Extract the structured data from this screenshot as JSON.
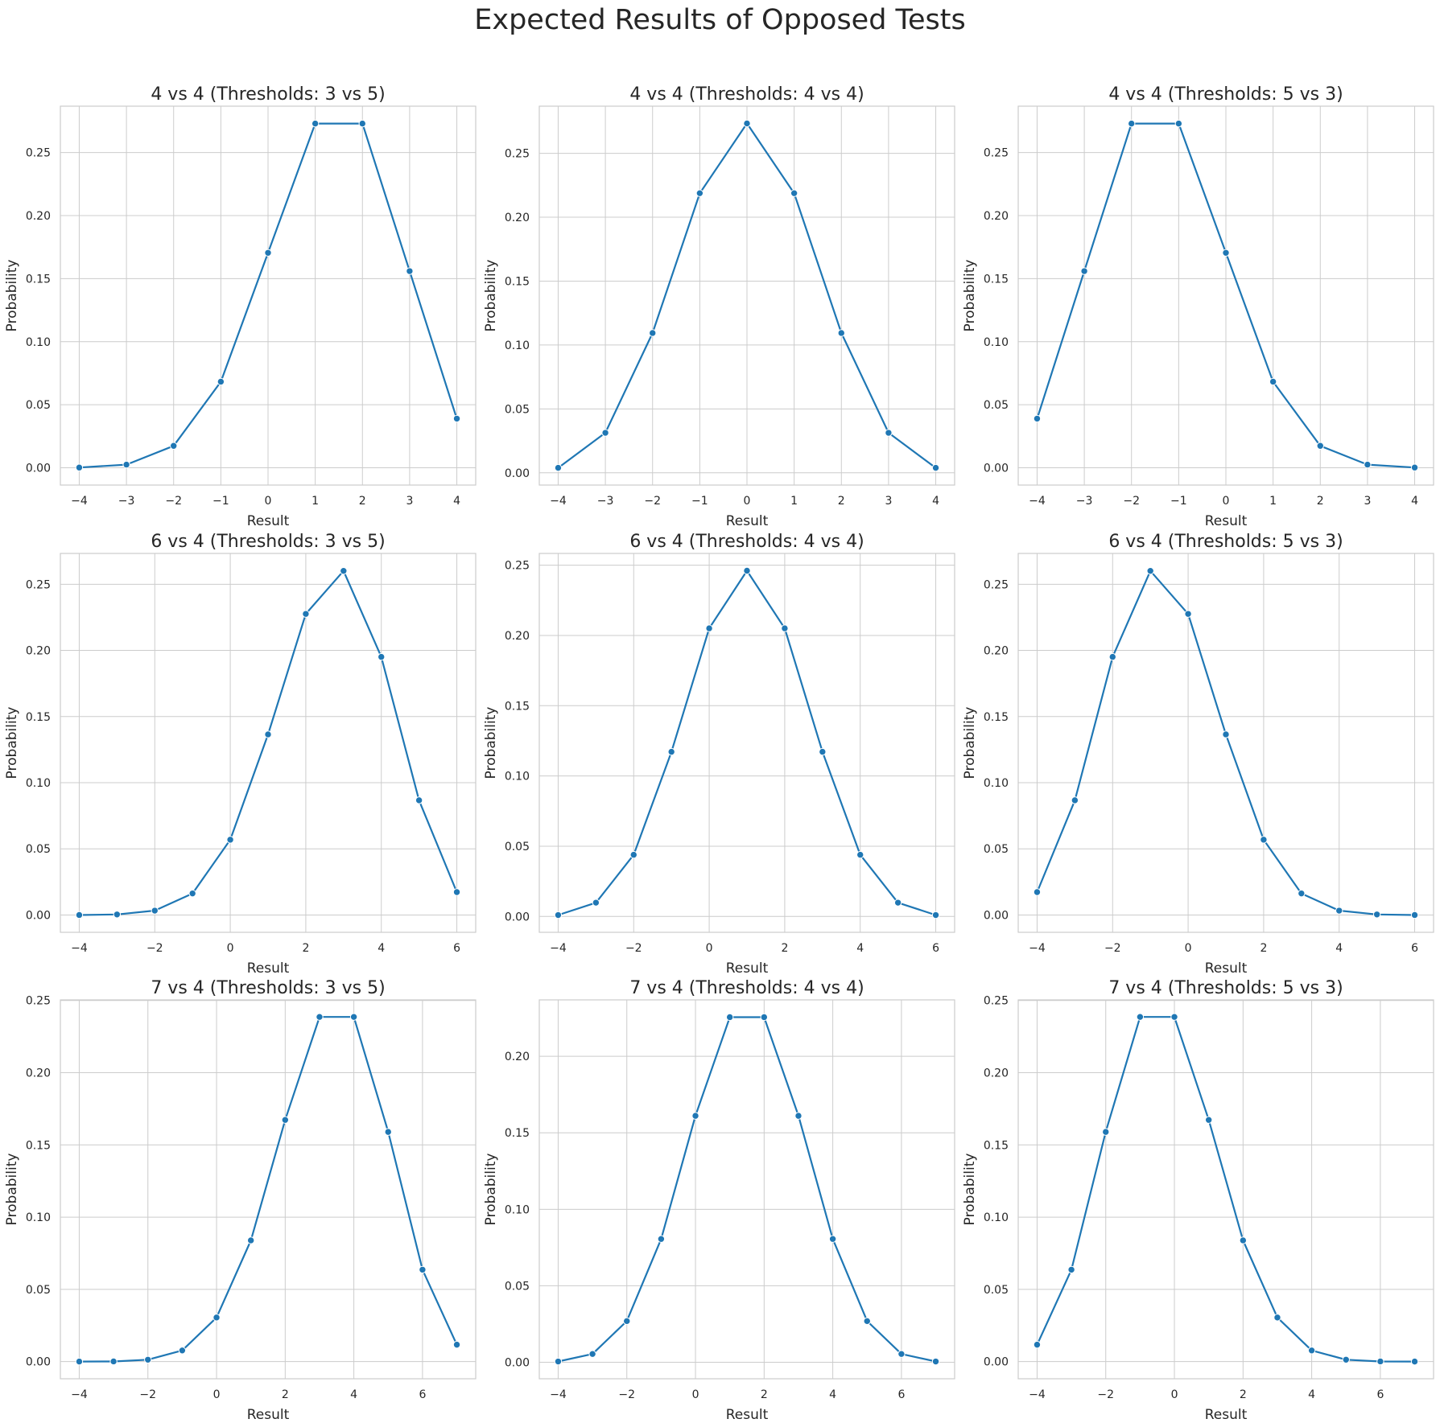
{
  "figure": {
    "title": "Expected Results of Opposed Tests"
  },
  "style": {
    "line_color": "#1f77b4",
    "grid_color": "#cccccc",
    "text_color": "#262626",
    "background": "#ffffff"
  },
  "chart_data": [
    {
      "type": "line",
      "title": "4 vs 4 (Thresholds: 3 vs 5)",
      "xlabel": "Result",
      "ylabel": "Probability",
      "x": [
        -4,
        -3,
        -2,
        -1,
        0,
        1,
        2,
        3,
        4
      ],
      "y": [
        0.0002,
        0.0025,
        0.0174,
        0.0683,
        0.1705,
        0.273,
        0.273,
        0.156,
        0.039
      ],
      "xticks": [
        -4,
        -3,
        -2,
        -1,
        0,
        1,
        2,
        3,
        4
      ],
      "yticks": [
        0,
        0.05,
        0.1,
        0.15,
        0.2,
        0.25
      ],
      "xlim": [
        -4.4,
        4.4
      ],
      "ylim": [
        -0.0137,
        0.2868
      ],
      "grid": true
    },
    {
      "type": "line",
      "title": "4 vs 4 (Thresholds: 4 vs 4)",
      "xlabel": "Result",
      "ylabel": "Probability",
      "x": [
        -4,
        -3,
        -2,
        -1,
        0,
        1,
        2,
        3,
        4
      ],
      "y": [
        0.0039,
        0.0313,
        0.1094,
        0.2188,
        0.2734,
        0.2188,
        0.1094,
        0.0313,
        0.0039
      ],
      "xticks": [
        -4,
        -3,
        -2,
        -1,
        0,
        1,
        2,
        3,
        4
      ],
      "yticks": [
        0,
        0.05,
        0.1,
        0.15,
        0.2,
        0.25
      ],
      "xlim": [
        -4.4,
        4.4
      ],
      "ylim": [
        -0.0096,
        0.2869
      ],
      "grid": true
    },
    {
      "type": "line",
      "title": "4 vs 4 (Thresholds: 5 vs 3)",
      "xlabel": "Result",
      "ylabel": "Probability",
      "x": [
        -4,
        -3,
        -2,
        -1,
        0,
        1,
        2,
        3,
        4
      ],
      "y": [
        0.039,
        0.156,
        0.273,
        0.273,
        0.1705,
        0.0683,
        0.0174,
        0.0025,
        0.0002
      ],
      "xticks": [
        -4,
        -3,
        -2,
        -1,
        0,
        1,
        2,
        3,
        4
      ],
      "yticks": [
        0,
        0.05,
        0.1,
        0.15,
        0.2,
        0.25
      ],
      "xlim": [
        -4.4,
        4.4
      ],
      "ylim": [
        -0.0137,
        0.2868
      ],
      "grid": true
    },
    {
      "type": "line",
      "title": "6 vs 4 (Thresholds: 3 vs 5)",
      "xlabel": "Result",
      "ylabel": "Probability",
      "x": [
        -4,
        -3,
        -2,
        -1,
        0,
        1,
        2,
        3,
        4,
        5,
        6
      ],
      "y": [
        0.0,
        0.0004,
        0.0033,
        0.0163,
        0.0569,
        0.1365,
        0.2276,
        0.2601,
        0.1951,
        0.0867,
        0.0173
      ],
      "xticks": [
        -4,
        -2,
        0,
        2,
        4,
        6
      ],
      "yticks": [
        0,
        0.05,
        0.1,
        0.15,
        0.2,
        0.25
      ],
      "xlim": [
        -4.5,
        6.5
      ],
      "ylim": [
        -0.0131,
        0.2733
      ],
      "grid": true
    },
    {
      "type": "line",
      "title": "6 vs 4 (Thresholds: 4 vs 4)",
      "xlabel": "Result",
      "ylabel": "Probability",
      "x": [
        -4,
        -3,
        -2,
        -1,
        0,
        1,
        2,
        3,
        4,
        5,
        6
      ],
      "y": [
        0.001,
        0.0098,
        0.0439,
        0.1172,
        0.2051,
        0.2461,
        0.2051,
        0.1172,
        0.0439,
        0.0098,
        0.001
      ],
      "xticks": [
        -4,
        -2,
        0,
        2,
        4,
        6
      ],
      "yticks": [
        0,
        0.05,
        0.1,
        0.15,
        0.2,
        0.25
      ],
      "xlim": [
        -4.5,
        6.5
      ],
      "ylim": [
        -0.0113,
        0.2584
      ],
      "grid": true
    },
    {
      "type": "line",
      "title": "6 vs 4 (Thresholds: 5 vs 3)",
      "xlabel": "Result",
      "ylabel": "Probability",
      "x": [
        -4,
        -3,
        -2,
        -1,
        0,
        1,
        2,
        3,
        4,
        5,
        6
      ],
      "y": [
        0.0173,
        0.0867,
        0.1951,
        0.2601,
        0.2276,
        0.1365,
        0.0569,
        0.0163,
        0.0033,
        0.0004,
        0.0
      ],
      "xticks": [
        -4,
        -2,
        0,
        2,
        4,
        6
      ],
      "yticks": [
        0,
        0.05,
        0.1,
        0.15,
        0.2,
        0.25
      ],
      "xlim": [
        -4.5,
        6.5
      ],
      "ylim": [
        -0.0131,
        0.2733
      ],
      "grid": true
    },
    {
      "type": "line",
      "title": "7 vs 4 (Thresholds: 3 vs 5)",
      "xlabel": "Result",
      "ylabel": "Probability",
      "x": [
        -4,
        -3,
        -2,
        -1,
        0,
        1,
        2,
        3,
        4,
        5,
        6,
        7
      ],
      "y": [
        0.0,
        0.0001,
        0.0013,
        0.0077,
        0.0305,
        0.0839,
        0.1673,
        0.2386,
        0.2386,
        0.159,
        0.0636,
        0.0117
      ],
      "xticks": [
        -4,
        -2,
        0,
        2,
        4,
        6
      ],
      "yticks": [
        0,
        0.05,
        0.1,
        0.15,
        0.2,
        0.25
      ],
      "xlim": [
        -4.55,
        7.55
      ],
      "ylim": [
        -0.0119,
        0.2504
      ],
      "grid": true
    },
    {
      "type": "line",
      "title": "7 vs 4 (Thresholds: 4 vs 4)",
      "xlabel": "Result",
      "ylabel": "Probability",
      "x": [
        -4,
        -3,
        -2,
        -1,
        0,
        1,
        2,
        3,
        4,
        5,
        6,
        7
      ],
      "y": [
        0.0005,
        0.0054,
        0.0269,
        0.0806,
        0.1611,
        0.2256,
        0.2256,
        0.1611,
        0.0806,
        0.0269,
        0.0054,
        0.0005
      ],
      "xticks": [
        -4,
        -2,
        0,
        2,
        4,
        6
      ],
      "yticks": [
        0,
        0.05,
        0.1,
        0.15,
        0.2
      ],
      "xlim": [
        -4.55,
        7.55
      ],
      "ylim": [
        -0.0108,
        0.2369
      ],
      "grid": true
    },
    {
      "type": "line",
      "title": "7 vs 4 (Thresholds: 5 vs 3)",
      "xlabel": "Result",
      "ylabel": "Probability",
      "x": [
        -4,
        -3,
        -2,
        -1,
        0,
        1,
        2,
        3,
        4,
        5,
        6,
        7
      ],
      "y": [
        0.0117,
        0.0636,
        0.159,
        0.2386,
        0.2386,
        0.1673,
        0.0839,
        0.0305,
        0.0077,
        0.0013,
        0.0001,
        0.0
      ],
      "xticks": [
        -4,
        -2,
        0,
        2,
        4,
        6
      ],
      "yticks": [
        0,
        0.05,
        0.1,
        0.15,
        0.2,
        0.25
      ],
      "xlim": [
        -4.55,
        7.55
      ],
      "ylim": [
        -0.0119,
        0.2504
      ],
      "grid": true
    }
  ]
}
